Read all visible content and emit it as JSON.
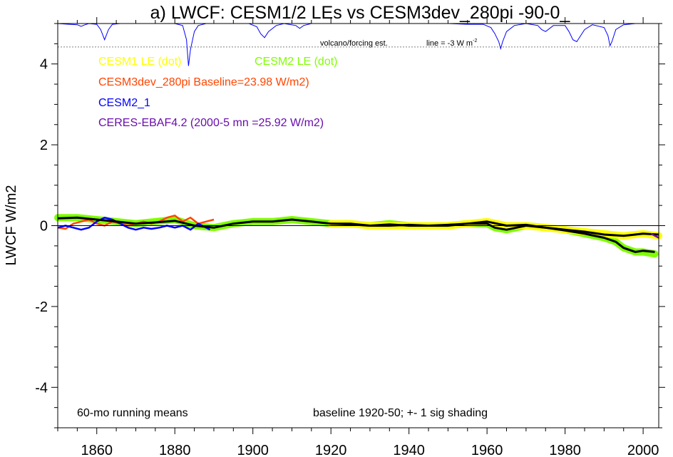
{
  "chart_data": {
    "type": "line",
    "title": "a) LWCF: CESM1/2 LEs vs CESM3dev_280pi -90-0_",
    "ylabel": "LWCF W/m2",
    "xlabel": "",
    "xlim": [
      1850,
      2004
    ],
    "ylim": [
      -5,
      5
    ],
    "x_ticks": [
      1860,
      1880,
      1900,
      1920,
      1940,
      1960,
      1980,
      2000
    ],
    "y_ticks": [
      4,
      2,
      0,
      -2,
      -4
    ],
    "grid": false,
    "zero_line": 0,
    "legend": [
      {
        "label": "CESM1 LE (dot)",
        "color": "#ffff00"
      },
      {
        "label": "CESM2 LE (dot)",
        "color": "#7fff00"
      },
      {
        "label": "CESM3dev_280pi Baseline=23.98 W/m2)",
        "color": "#ff4500"
      },
      {
        "label": "CESM2_1",
        "color": "#0000ff"
      },
      {
        "label": "CERES-EBAF4.2 (2000-5 mn =25.92 W/m2)",
        "color": "#6a0dad"
      }
    ],
    "annotations": {
      "volcano": "volcano/forcing est.",
      "line_scale": "line = -3 W m",
      "line_scale_sup": "-2",
      "bottom_left": "60-mo running means",
      "bottom_center": "baseline 1920-50; +- 1 sig shading"
    },
    "volcano_series": {
      "name": "volcano/forcing est.",
      "color": "#0000ff",
      "baseline_y": 5.0,
      "x": [
        1850,
        1853,
        1855,
        1856,
        1857,
        1858,
        1860,
        1861,
        1862,
        1863,
        1864,
        1866,
        1870,
        1875,
        1880,
        1882,
        1883,
        1883.5,
        1884,
        1885,
        1886,
        1888,
        1890,
        1895,
        1899,
        1901,
        1902,
        1903,
        1904,
        1906,
        1908,
        1911,
        1912,
        1913,
        1915,
        1920,
        1930,
        1950,
        1955,
        1959,
        1961,
        1962,
        1963,
        1963.5,
        1964,
        1965,
        1967,
        1970,
        1973,
        1974,
        1975,
        1977,
        1980,
        1981,
        1982,
        1983,
        1985,
        1987,
        1990,
        1991,
        1991.5,
        1992,
        1993,
        1995,
        1998,
        2004
      ],
      "y": [
        5.0,
        4.98,
        4.97,
        4.93,
        4.97,
        5.0,
        4.98,
        4.85,
        4.6,
        4.85,
        4.98,
        5.0,
        5.0,
        5.0,
        5.0,
        4.95,
        4.6,
        3.95,
        4.35,
        4.8,
        4.95,
        5.0,
        5.0,
        5.0,
        5.0,
        4.92,
        4.75,
        4.65,
        4.8,
        4.95,
        5.0,
        4.95,
        4.88,
        4.95,
        5.0,
        5.0,
        5.0,
        5.0,
        4.98,
        4.98,
        4.9,
        4.75,
        4.55,
        4.38,
        4.55,
        4.8,
        4.95,
        5.0,
        4.95,
        4.85,
        4.8,
        4.95,
        4.95,
        4.8,
        4.6,
        4.55,
        4.85,
        4.97,
        4.9,
        4.7,
        4.45,
        4.55,
        4.85,
        4.97,
        5.0,
        5.0
      ]
    },
    "volcano_reference_line": {
      "y": 4.42,
      "color": "#808080"
    },
    "series": [
      {
        "name": "CESM2 LE (dot)",
        "color": "#7fff00",
        "shading": true,
        "x": [
          1850,
          1855,
          1860,
          1865,
          1870,
          1875,
          1880,
          1885,
          1890,
          1895,
          1900,
          1905,
          1910,
          1915,
          1920,
          1925,
          1930,
          1935,
          1940,
          1945,
          1950,
          1955,
          1960,
          1962,
          1965,
          1970,
          1975,
          1980,
          1985,
          1990,
          1993,
          1995,
          1998,
          2000,
          2003
        ],
        "y": [
          0.2,
          0.2,
          0.15,
          0.1,
          0.05,
          0.1,
          0.15,
          0.0,
          -0.05,
          0.05,
          0.1,
          0.1,
          0.15,
          0.1,
          0.05,
          0.05,
          0.0,
          0.05,
          0.0,
          0.0,
          0.0,
          0.05,
          0.05,
          -0.05,
          -0.1,
          0.0,
          -0.05,
          -0.1,
          -0.2,
          -0.3,
          -0.4,
          -0.55,
          -0.65,
          -0.65,
          -0.7
        ]
      },
      {
        "name": "CESM1 LE (dot)",
        "color": "#ffff00",
        "shading": true,
        "x": [
          1920,
          1925,
          1930,
          1935,
          1940,
          1945,
          1950,
          1955,
          1960,
          1965,
          1970,
          1975,
          1980,
          1985,
          1990,
          1995,
          2000,
          2004
        ],
        "y": [
          0.05,
          0.05,
          0.0,
          0.0,
          0.0,
          0.0,
          0.0,
          0.05,
          0.1,
          0.0,
          0.0,
          -0.05,
          -0.1,
          -0.15,
          -0.2,
          -0.25,
          -0.2,
          -0.25
        ]
      },
      {
        "name": "CESM3dev_280pi Baseline=23.98 W/m2)",
        "color": "#ff4500",
        "x": [
          1850,
          1852,
          1854,
          1856,
          1858,
          1860,
          1862,
          1864,
          1866,
          1868,
          1870,
          1872,
          1874,
          1876,
          1878,
          1880,
          1882,
          1884,
          1886,
          1888,
          1890
        ],
        "y": [
          -0.05,
          -0.08,
          0.05,
          0.1,
          0.15,
          0.05,
          0.0,
          0.1,
          0.05,
          0.0,
          0.05,
          0.1,
          0.05,
          0.1,
          0.2,
          0.25,
          0.1,
          0.2,
          0.05,
          0.1,
          0.15
        ]
      },
      {
        "name": "CESM2_1",
        "color": "#0000ff",
        "x": [
          1850,
          1852,
          1854,
          1856,
          1858,
          1860,
          1862,
          1864,
          1866,
          1868,
          1870,
          1872,
          1874,
          1876,
          1878,
          1880,
          1882,
          1884,
          1886,
          1888,
          1889
        ],
        "y": [
          -0.05,
          0.0,
          -0.05,
          -0.1,
          -0.05,
          0.1,
          0.2,
          0.15,
          0.05,
          -0.05,
          -0.1,
          -0.05,
          -0.08,
          -0.05,
          0.0,
          -0.05,
          0.0,
          -0.1,
          0.05,
          -0.05,
          -0.1
        ]
      },
      {
        "name": "CESM2 LE",
        "color": "#000000",
        "x": [
          1850,
          1855,
          1860,
          1865,
          1870,
          1875,
          1880,
          1885,
          1890,
          1895,
          1900,
          1905,
          1910,
          1915,
          1920,
          1925,
          1930,
          1935,
          1940,
          1945,
          1950,
          1955,
          1960,
          1962,
          1965,
          1970,
          1975,
          1980,
          1985,
          1990,
          1993,
          1995,
          1998,
          2000,
          2003
        ],
        "y": [
          0.18,
          0.2,
          0.15,
          0.1,
          0.05,
          0.08,
          0.12,
          0.0,
          -0.05,
          0.05,
          0.1,
          0.1,
          0.15,
          0.1,
          0.05,
          0.03,
          0.0,
          0.03,
          0.0,
          0.0,
          0.0,
          0.05,
          0.05,
          -0.05,
          -0.1,
          0.0,
          -0.05,
          -0.12,
          -0.2,
          -0.3,
          -0.4,
          -0.55,
          -0.65,
          -0.62,
          -0.65
        ]
      },
      {
        "name": "CESM1 LE",
        "color": "#000000",
        "x": [
          1920,
          1925,
          1930,
          1935,
          1940,
          1945,
          1950,
          1955,
          1960,
          1965,
          1970,
          1975,
          1980,
          1985,
          1990,
          1995,
          2000,
          2004
        ],
        "y": [
          0.05,
          0.05,
          0.0,
          0.0,
          0.02,
          0.0,
          0.02,
          0.05,
          0.1,
          0.0,
          0.02,
          -0.05,
          -0.1,
          -0.15,
          -0.22,
          -0.25,
          -0.2,
          -0.22
        ]
      },
      {
        "name": "CERES-EBAF4.2 (2000-5 mn =25.92 W/m2)",
        "color": "#6a0dad",
        "x": [
          2002,
          2004
        ],
        "y": [
          -0.2,
          -0.3
        ]
      }
    ]
  }
}
